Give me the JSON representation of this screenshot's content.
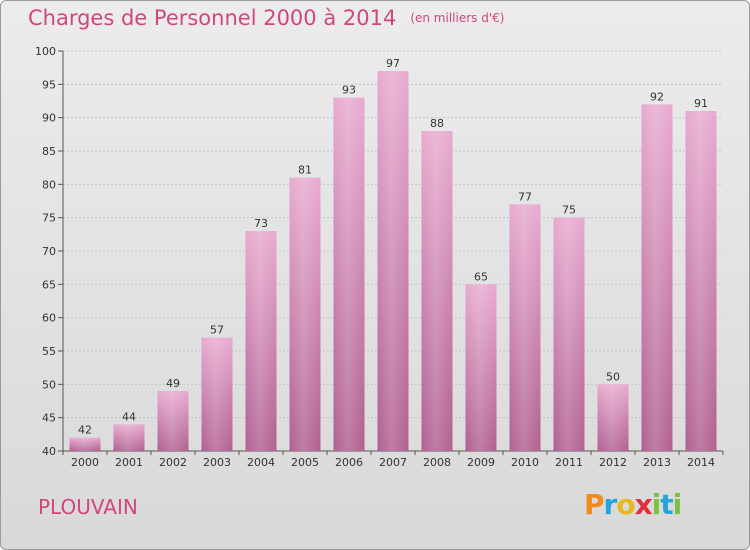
{
  "chart_data": {
    "type": "bar",
    "title": "Charges de Personnel 2000 à 2014",
    "subtitle": "(en milliers d'€)",
    "categories": [
      "2000",
      "2001",
      "2002",
      "2003",
      "2004",
      "2005",
      "2006",
      "2007",
      "2008",
      "2009",
      "2010",
      "2011",
      "2012",
      "2013",
      "2014"
    ],
    "values": [
      42,
      44,
      49,
      57,
      73,
      81,
      93,
      97,
      88,
      65,
      77,
      75,
      50,
      92,
      91
    ],
    "ylim": [
      40,
      100
    ],
    "yticks": [
      40,
      45,
      50,
      55,
      60,
      65,
      70,
      75,
      80,
      85,
      90,
      95,
      100
    ],
    "grid": true,
    "bar_color": "#d98ab5",
    "bar_color_light": "#e8aad0",
    "bar_color_dark": "#b06090"
  },
  "place_label": "PLOUVAIN",
  "logo": {
    "letters": [
      "P",
      "r",
      "o",
      "x",
      "i",
      "t",
      "i"
    ],
    "colors": [
      "#f08c1e",
      "#27a3dc",
      "#e8b820",
      "#e0303c",
      "#7cc241",
      "#27a3dc",
      "#7cc241"
    ]
  },
  "title_color": "#d2467f"
}
